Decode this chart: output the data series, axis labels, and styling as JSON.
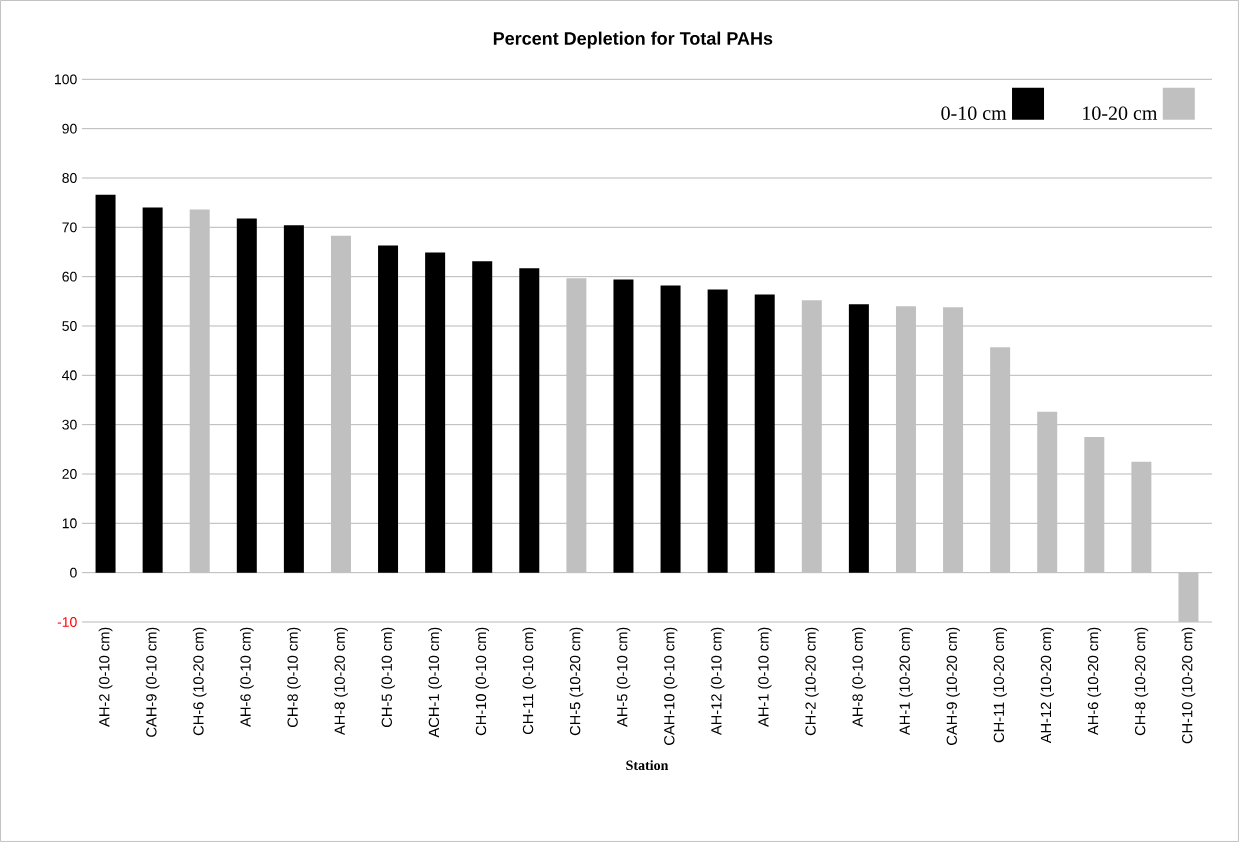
{
  "chart_data": {
    "type": "bar",
    "title": "Percent Depletion for Total PAHs",
    "xlabel": "Station",
    "categories": [
      "AH-2 (0-10 cm)",
      "CAH-9 (0-10 cm)",
      "CH-6 (10-20 cm)",
      "AH-6 (0-10 cm)",
      "CH-8 (0-10 cm)",
      "AH-8 (10-20 cm)",
      "CH-5 (0-10 cm)",
      "ACH-1 (0-10 cm)",
      "CH-10 (0-10 cm)",
      "CH-11 (0-10 cm)",
      "CH-5 (10-20 cm)",
      "AH-5 (0-10 cm)",
      "CAH-10 (0-10 cm)",
      "AH-12 (0-10 cm)",
      "AH-1 (0-10 cm)",
      "CH-2 (10-20 cm)",
      "AH-8 (0-10 cm)",
      "AH-1 (10-20 cm)",
      "CAH-9 (10-20 cm)",
      "CH-11 (10-20 cm)",
      "AH-12 (10-20 cm)",
      "AH-6 (10-20 cm)",
      "CH-8 (10-20 cm)",
      "CH-10 (10-20 cm)"
    ],
    "series": [
      {
        "name": "0-10 cm",
        "color": "#000000",
        "values": [
          76.6,
          74.0,
          null,
          71.8,
          70.4,
          null,
          66.3,
          64.9,
          63.1,
          61.7,
          null,
          59.4,
          58.2,
          57.4,
          56.4,
          null,
          54.4,
          null,
          null,
          null,
          null,
          null,
          null,
          null
        ]
      },
      {
        "name": "10-20 cm",
        "color": "#c0c0c0",
        "values": [
          null,
          null,
          73.6,
          null,
          null,
          68.3,
          null,
          null,
          null,
          null,
          59.7,
          null,
          null,
          null,
          null,
          55.2,
          null,
          54.0,
          53.8,
          45.7,
          32.6,
          27.5,
          22.5,
          -10.0
        ]
      }
    ],
    "ylim": [
      -10,
      100
    ],
    "yticks": [
      -10,
      0,
      10,
      20,
      30,
      40,
      50,
      60,
      70,
      80,
      90,
      100
    ],
    "grid": "y",
    "legend": "top right"
  }
}
